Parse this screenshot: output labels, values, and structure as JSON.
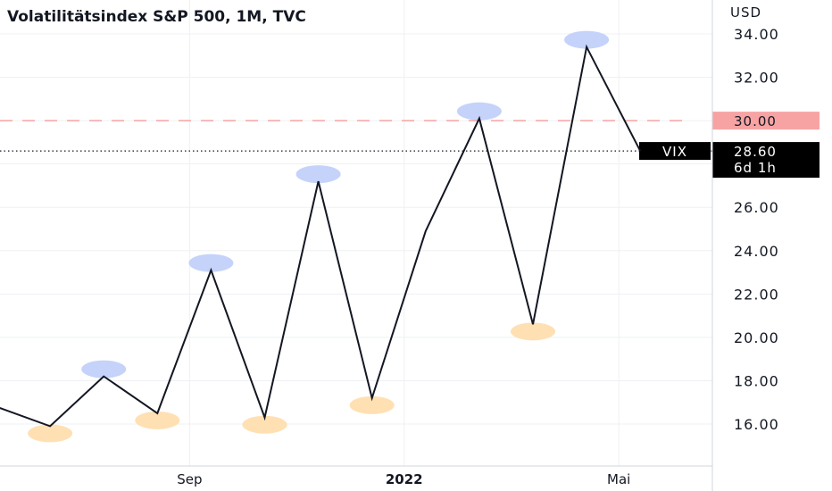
{
  "chart_data": {
    "type": "line",
    "title": "Volatilitätsindex S&P 500, 1M, TVC",
    "y_unit": "USD",
    "ylim": [
      14.0,
      35.5
    ],
    "y_ticks": [
      16,
      18,
      20,
      22,
      24,
      26,
      32,
      34
    ],
    "y_tick_labels": [
      "16.00",
      "18.00",
      "20.00",
      "22.00",
      "24.00",
      "26.00",
      "32.00",
      "34.00"
    ],
    "x_ticks": [
      {
        "label": "Sep",
        "bold": false
      },
      {
        "label": "2022",
        "bold": true
      },
      {
        "label": "Mai",
        "bold": false
      }
    ],
    "series": [
      {
        "values": [
          16.8,
          15.9,
          18.2,
          16.5,
          23.1,
          16.3,
          27.2,
          17.2,
          24.9,
          30.1,
          20.6,
          33.4,
          28.6
        ]
      }
    ],
    "highs": [
      {
        "index": 2,
        "value": 18.2
      },
      {
        "index": 4,
        "value": 23.1
      },
      {
        "index": 6,
        "value": 27.2
      },
      {
        "index": 9,
        "value": 30.1
      },
      {
        "index": 11,
        "value": 33.4
      }
    ],
    "lows": [
      {
        "index": 1,
        "value": 15.9
      },
      {
        "index": 3,
        "value": 16.5
      },
      {
        "index": 5,
        "value": 16.3
      },
      {
        "index": 7,
        "value": 17.2
      },
      {
        "index": 10,
        "value": 20.6
      }
    ],
    "reference_line": {
      "value": 30.0,
      "label": "30.00",
      "color": "#f23645"
    },
    "last_price": {
      "value": 28.6,
      "label": "28.60",
      "countdown": "6d 1h",
      "symbol": "VIX"
    },
    "colors": {
      "line": "#131722",
      "high_marker": "#c5d3fa",
      "low_marker": "#ffe0b3",
      "reference": "#f7a3a3",
      "label_bg": "#000000",
      "grid": "#eef0f4"
    },
    "grid": true
  }
}
